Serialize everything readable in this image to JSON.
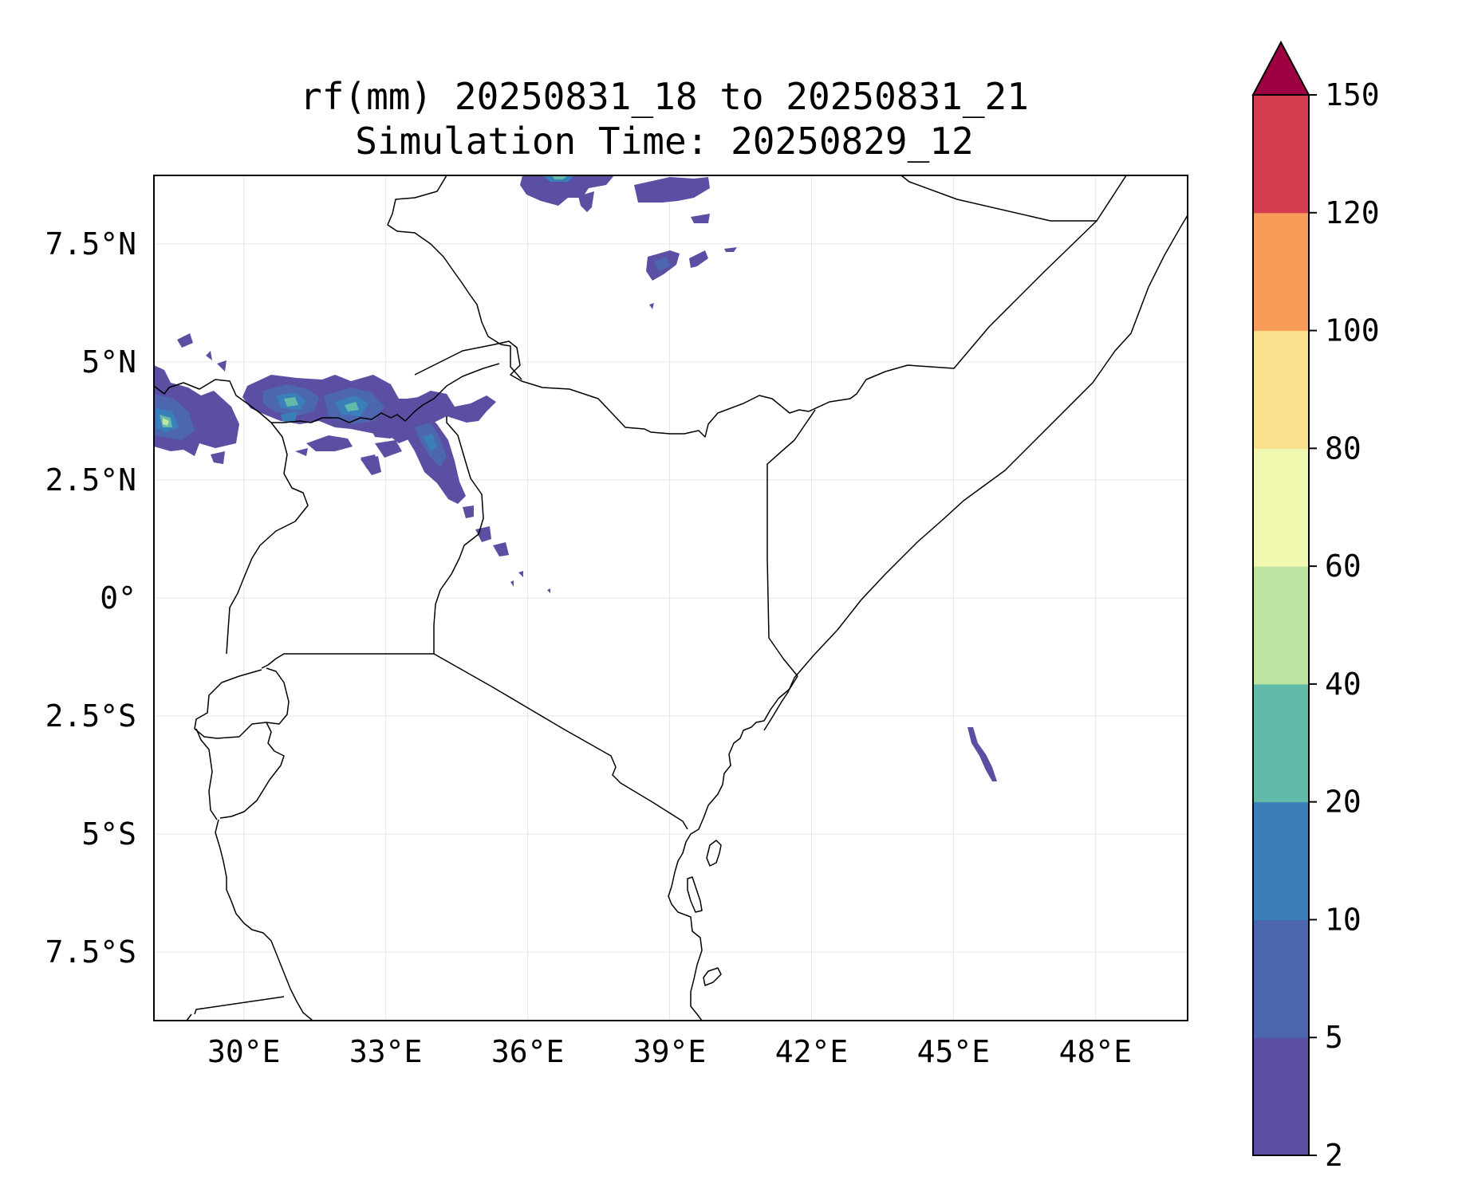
{
  "title_line1": "rf(mm) 20250831_18 to 20250831_21",
  "title_line2": "Simulation Time: 20250829_12",
  "map": {
    "lon_ticks": [
      {
        "value": 30,
        "label": "30°E"
      },
      {
        "value": 33,
        "label": "33°E"
      },
      {
        "value": 36,
        "label": "36°E"
      },
      {
        "value": 39,
        "label": "39°E"
      },
      {
        "value": 42,
        "label": "42°E"
      },
      {
        "value": 45,
        "label": "45°E"
      },
      {
        "value": 48,
        "label": "48°E"
      }
    ],
    "lat_ticks": [
      {
        "value": 7.5,
        "label": "7.5°N"
      },
      {
        "value": 5,
        "label": "5°N"
      },
      {
        "value": 2.5,
        "label": "2.5°N"
      },
      {
        "value": 0,
        "label": "0°"
      },
      {
        "value": -2.5,
        "label": "2.5°S"
      },
      {
        "value": -5,
        "label": "5°S"
      },
      {
        "value": -7.5,
        "label": "7.5°S"
      }
    ],
    "extent": {
      "lon_min": 28.1,
      "lon_max": 49.95,
      "lat_min": -8.95,
      "lat_max": 8.95
    },
    "gridlines": true
  },
  "colorbar": {
    "levels": [
      "2",
      "5",
      "10",
      "20",
      "40",
      "60",
      "80",
      "100",
      "120",
      "150"
    ],
    "colors": [
      "#5a4fa2",
      "#4c66b0",
      "#3a7fb9",
      "#62bba8",
      "#bde4a0",
      "#f1f8b0",
      "#fbe08e",
      "#f99c5a",
      "#d33d4f"
    ],
    "extend_color": "#9e0142"
  },
  "chart_data": {
    "type": "heatmap",
    "title": "rf(mm) 20250831_18 to 20250831_21",
    "subtitle": "Simulation Time: 20250829_12",
    "xlim": [
      28.1,
      49.95
    ],
    "ylim": [
      -8.95,
      8.95
    ],
    "colorbar_levels": [
      2,
      5,
      10,
      20,
      40,
      60,
      80,
      100,
      120,
      150
    ],
    "colorbar_extend": "max"
  }
}
